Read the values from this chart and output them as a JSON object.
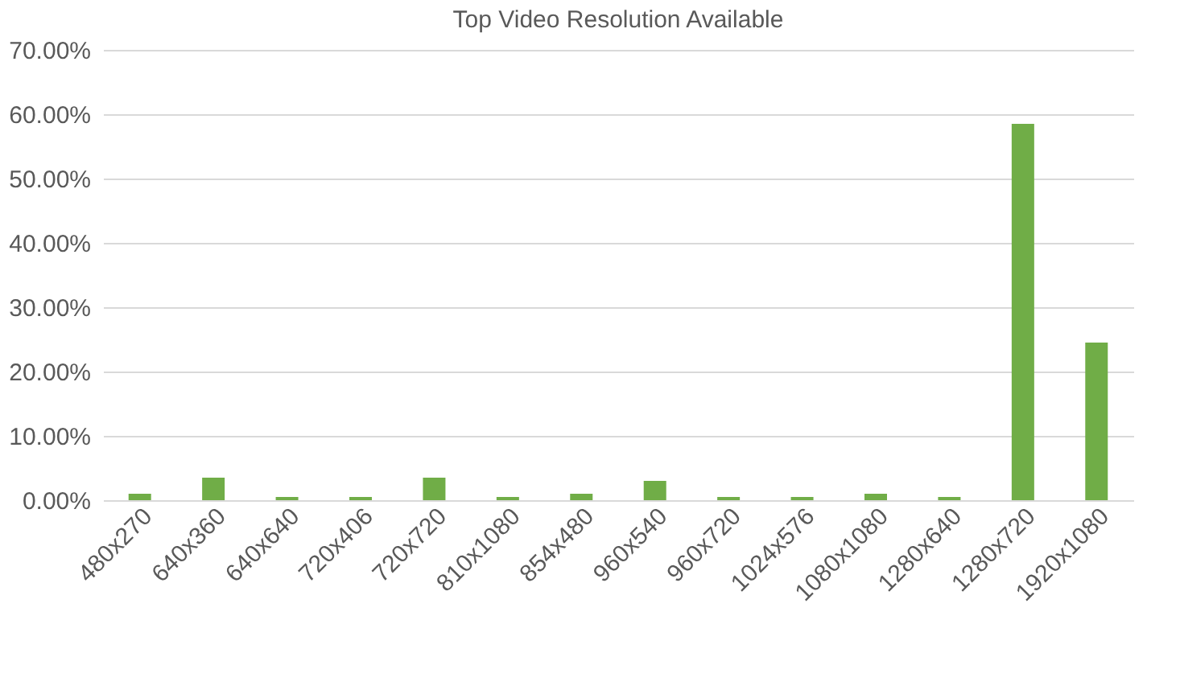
{
  "chart_data": {
    "type": "bar",
    "title": "Top Video Resolution Available",
    "categories": [
      "480x270",
      "640x360",
      "640x640",
      "720x406",
      "720x720",
      "810x1080",
      "854x480",
      "960x540",
      "960x720",
      "1024x576",
      "1080x1080",
      "1280x640",
      "1280x720",
      "1920x1080"
    ],
    "values": [
      1.0,
      3.5,
      0.5,
      0.5,
      3.5,
      0.5,
      1.0,
      3.0,
      0.5,
      0.5,
      1.0,
      0.5,
      58.5,
      24.5
    ],
    "color": "#70ad47",
    "ylim": [
      0,
      70
    ],
    "yticks": [
      {
        "value": 0,
        "label": "0.00%"
      },
      {
        "value": 10,
        "label": "10.00%"
      },
      {
        "value": 20,
        "label": "20.00%"
      },
      {
        "value": 30,
        "label": "30.00%"
      },
      {
        "value": 40,
        "label": "40.00%"
      },
      {
        "value": 50,
        "label": "50.00%"
      },
      {
        "value": 60,
        "label": "60.00%"
      },
      {
        "value": 70,
        "label": "70.00%"
      }
    ],
    "grid": "y"
  }
}
